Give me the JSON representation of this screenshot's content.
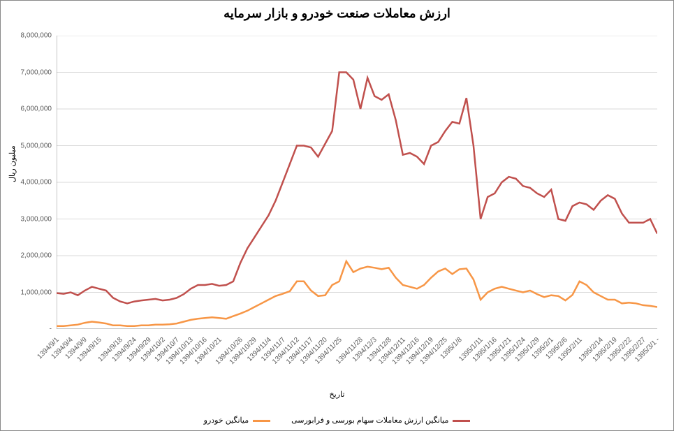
{
  "chart": {
    "type": "line",
    "title": "ارزش  معاملات صنعت خودرو و بازار سرمایه",
    "title_fontsize": 18,
    "title_fontweight": "bold",
    "background_color": "#ffffff",
    "border_color": "#888888",
    "xlabel": "تاریخ",
    "ylabel": "میلیون ریال",
    "label_fontsize": 11,
    "tick_fontsize": 10,
    "tick_color": "#595959",
    "ylim": [
      0,
      8000000
    ],
    "ytick_step": 1000000,
    "grid_color": "#d9d9d9",
    "axis_line_color": "#888888",
    "x_tick_labels": [
      "1394/9/1",
      "1394/9/4",
      "1394/9/9",
      "1394/9/15",
      "1394/9/18",
      "1394/9/24",
      "1394/9/29",
      "1394/10/2",
      "1394/10/7",
      "1394/10/13",
      "1394/10/16",
      "1394/10/21",
      "1394/10/26",
      "1394/10/29",
      "1394/11/4",
      "1394/11/7",
      "1394/11/12",
      "1394/11/17",
      "1394/11/20",
      "1394/11/25",
      "1394/11/28",
      "1394/12/3",
      "1394/12/8",
      "1394/12/11",
      "1394/12/16",
      "1394/12/19",
      "1394/12/25",
      "1395/1/8",
      "1395/1/11",
      "1395/1/16",
      "1395/1/21",
      "1395/1/24",
      "1395/1/29",
      "1395/2/1",
      "1395/2/6",
      "1395/2/11",
      "1395/2/14",
      "1395/2/19",
      "1395/2/22",
      "1395/2/27",
      "1395/3/1 -"
    ],
    "x_tick_rotation": -45,
    "line_width": 2.5,
    "series": [
      {
        "name": "میانگین ارزش معاملات سهام بورسی و فرابورسی",
        "color": "#c0504d",
        "values": [
          980000,
          960000,
          1000000,
          920000,
          1050000,
          1150000,
          1100000,
          1050000,
          850000,
          750000,
          700000,
          750000,
          780000,
          800000,
          820000,
          780000,
          800000,
          850000,
          950000,
          1100000,
          1200000,
          1200000,
          1230000,
          1180000,
          1200000,
          1300000,
          1800000,
          2200000,
          2500000,
          2800000,
          3100000,
          3500000,
          4000000,
          4500000,
          5000000,
          5000000,
          4950000,
          4700000,
          5050000,
          5400000,
          7000000,
          7000000,
          6800000,
          6000000,
          6850000,
          6350000,
          6250000,
          6400000,
          5700000,
          4750000,
          4800000,
          4700000,
          4500000,
          5000000,
          5100000,
          5400000,
          5650000,
          5600000,
          6300000,
          5000000,
          3000000,
          3600000,
          3700000,
          4000000,
          4150000,
          4100000,
          3900000,
          3850000,
          3700000,
          3600000,
          3800000,
          3000000,
          2950000,
          3350000,
          3450000,
          3400000,
          3250000,
          3500000,
          3650000,
          3550000,
          3150000,
          2900000,
          2900000,
          2900000,
          3000000,
          2600000
        ]
      },
      {
        "name": "میانگین خودرو",
        "color": "#f79646",
        "values": [
          80000,
          80000,
          100000,
          120000,
          170000,
          200000,
          180000,
          150000,
          100000,
          100000,
          80000,
          80000,
          100000,
          100000,
          120000,
          120000,
          130000,
          150000,
          200000,
          250000,
          280000,
          300000,
          320000,
          300000,
          280000,
          350000,
          420000,
          500000,
          600000,
          700000,
          800000,
          900000,
          960000,
          1030000,
          1300000,
          1300000,
          1050000,
          900000,
          920000,
          1200000,
          1300000,
          1850000,
          1550000,
          1650000,
          1700000,
          1670000,
          1630000,
          1670000,
          1400000,
          1200000,
          1150000,
          1100000,
          1200000,
          1400000,
          1570000,
          1650000,
          1500000,
          1630000,
          1650000,
          1350000,
          800000,
          1000000,
          1100000,
          1150000,
          1100000,
          1050000,
          1000000,
          1050000,
          950000,
          870000,
          920000,
          900000,
          780000,
          930000,
          1300000,
          1200000,
          1000000,
          900000,
          800000,
          800000,
          700000,
          720000,
          700000,
          650000,
          630000,
          600000
        ]
      }
    ],
    "legend": {
      "position": "bottom",
      "fontsize": 11
    }
  }
}
